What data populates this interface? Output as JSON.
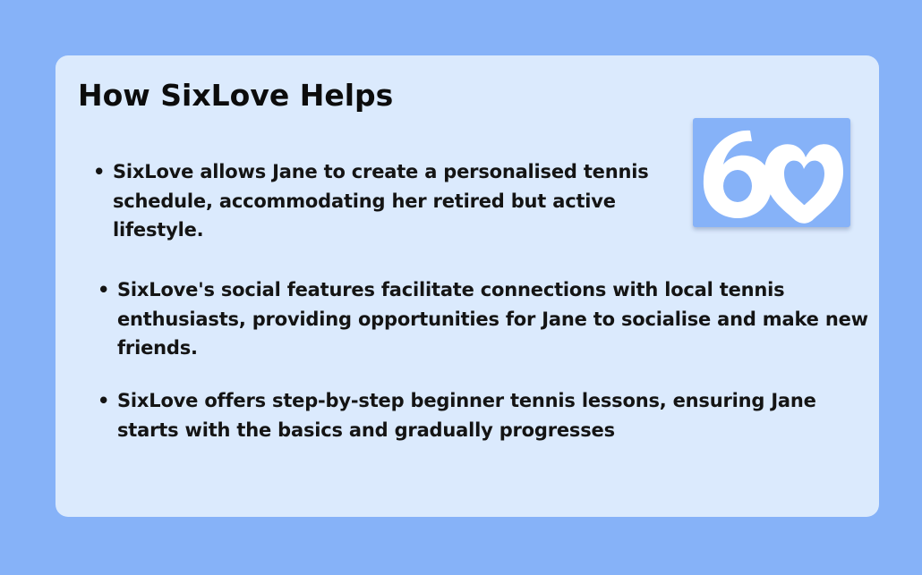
{
  "card": {
    "title": "How SixLove Helps"
  },
  "logo": {
    "icon": "sixlove-logo-icon",
    "background": "#86b2f8",
    "foreground": "#ffffff"
  },
  "bullet_symbol": "•",
  "bullets": [
    "SixLove allows Jane to create a personalised tennis schedule, accommodating her retired but active lifestyle.",
    "SixLove's social features facilitate connections with local tennis enthusiasts, providing opportunities for Jane to socialise and make new friends.",
    "SixLove offers step-by-step beginner tennis lessons, ensuring Jane starts with the basics and gradually progresses"
  ],
  "colors": {
    "page_background": "#86b2f8",
    "card_background": "#dbeafd",
    "text": "#141414"
  }
}
